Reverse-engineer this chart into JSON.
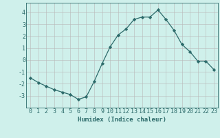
{
  "x": [
    0,
    1,
    2,
    3,
    4,
    5,
    6,
    7,
    8,
    9,
    10,
    11,
    12,
    13,
    14,
    15,
    16,
    17,
    18,
    19,
    20,
    21,
    22,
    23
  ],
  "y": [
    -1.5,
    -1.9,
    -2.2,
    -2.5,
    -2.7,
    -2.9,
    -3.3,
    -3.1,
    -1.8,
    -0.3,
    1.1,
    2.1,
    2.6,
    3.4,
    3.6,
    3.6,
    4.2,
    3.4,
    2.5,
    1.3,
    0.7,
    -0.1,
    -0.1,
    -0.8
  ],
  "xlabel": "Humidex (Indice chaleur)",
  "xlim": [
    -0.5,
    23.5
  ],
  "ylim": [
    -4.0,
    4.8
  ],
  "yticks": [
    -3,
    -2,
    -1,
    0,
    1,
    2,
    3,
    4
  ],
  "xticks": [
    0,
    1,
    2,
    3,
    4,
    5,
    6,
    7,
    8,
    9,
    10,
    11,
    12,
    13,
    14,
    15,
    16,
    17,
    18,
    19,
    20,
    21,
    22,
    23
  ],
  "line_color": "#2d6b6b",
  "marker": "D",
  "marker_size": 2.2,
  "bg_color": "#cff0eb",
  "grid_color": "#b8b8b8",
  "label_fontsize": 6.5,
  "tick_fontsize": 6.0
}
